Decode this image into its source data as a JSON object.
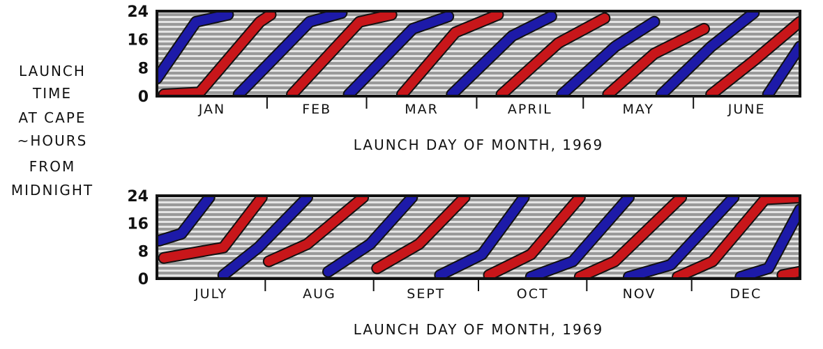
{
  "chart_data": [
    {
      "type": "area",
      "ylabel_lines": [
        "LAUNCH",
        "TIME",
        "AT CAPE",
        "~HOURS",
        "FROM",
        "MIDNIGHT"
      ],
      "xlabel": "LAUNCH DAY OF MONTH, 1969",
      "xlim_day_of_year": [
        0,
        181
      ],
      "ylim": [
        0,
        24
      ],
      "yticks": [
        "0",
        "8",
        "16",
        "24"
      ],
      "months": [
        {
          "label": "JAN",
          "start": 0,
          "end": 31
        },
        {
          "label": "FEB",
          "start": 31,
          "end": 59
        },
        {
          "label": "MAR",
          "start": 59,
          "end": 90
        },
        {
          "label": "APRIL",
          "start": 90,
          "end": 120
        },
        {
          "label": "MAY",
          "start": 120,
          "end": 151
        },
        {
          "label": "JUNE",
          "start": 151,
          "end": 181
        }
      ],
      "bands": [
        {
          "color": "blue",
          "points": [
            [
              0,
              5
            ],
            [
              11,
              21
            ],
            [
              20,
              23
            ]
          ]
        },
        {
          "color": "red",
          "points": [
            [
              2,
              0.5
            ],
            [
              12,
              1
            ],
            [
              29,
              21
            ],
            [
              32,
              23
            ]
          ]
        },
        {
          "color": "blue",
          "points": [
            [
              23,
              0.5
            ],
            [
              43,
              21
            ],
            [
              52,
              23.5
            ]
          ]
        },
        {
          "color": "red",
          "points": [
            [
              38,
              0.5
            ],
            [
              57,
              21
            ],
            [
              66,
              23
            ]
          ]
        },
        {
          "color": "blue",
          "points": [
            [
              54,
              0.5
            ],
            [
              72,
              19
            ],
            [
              82,
              22.5
            ]
          ]
        },
        {
          "color": "red",
          "points": [
            [
              69,
              0.5
            ],
            [
              84,
              18
            ],
            [
              96,
              23
            ]
          ]
        },
        {
          "color": "blue",
          "points": [
            [
              83,
              0.5
            ],
            [
              100,
              17
            ],
            [
              111,
              22.5
            ]
          ]
        },
        {
          "color": "red",
          "points": [
            [
              97,
              0.5
            ],
            [
              113,
              15
            ],
            [
              126,
              22
            ]
          ]
        },
        {
          "color": "blue",
          "points": [
            [
              114,
              0.5
            ],
            [
              129,
              14
            ],
            [
              140,
              21
            ]
          ]
        },
        {
          "color": "red",
          "points": [
            [
              127,
              0.5
            ],
            [
              140,
              12
            ],
            [
              154,
              19
            ]
          ]
        },
        {
          "color": "blue",
          "points": [
            [
              142,
              0.5
            ],
            [
              156,
              14
            ],
            [
              168,
              23.5
            ]
          ]
        },
        {
          "color": "red",
          "points": [
            [
              156,
              0.5
            ],
            [
              168,
              10
            ],
            [
              181,
              21
            ]
          ]
        },
        {
          "color": "blue",
          "points": [
            [
              172,
              0.5
            ],
            [
              181,
              14
            ]
          ]
        }
      ]
    },
    {
      "type": "area",
      "xlabel": "LAUNCH DAY OF MONTH, 1969",
      "xlim_day_of_year": [
        181,
        365
      ],
      "ylim": [
        0,
        24
      ],
      "yticks": [
        "0",
        "8",
        "16",
        "24"
      ],
      "months": [
        {
          "label": "JULY",
          "start": 181,
          "end": 212
        },
        {
          "label": "AUG",
          "start": 212,
          "end": 243
        },
        {
          "label": "SEPT",
          "start": 243,
          "end": 273
        },
        {
          "label": "OCT",
          "start": 273,
          "end": 304
        },
        {
          "label": "NOV",
          "start": 304,
          "end": 334
        },
        {
          "label": "DEC",
          "start": 334,
          "end": 365
        }
      ],
      "bands": [
        {
          "color": "blue",
          "points": [
            [
              181.6,
              11
            ],
            [
              188,
              13
            ],
            [
              196,
              23.5
            ]
          ]
        },
        {
          "color": "red",
          "points": [
            [
              183,
              6
            ],
            [
              200,
              9
            ],
            [
              211,
              23.5
            ]
          ]
        },
        {
          "color": "blue",
          "points": [
            [
              200,
              1
            ],
            [
              210,
              9
            ],
            [
              224,
              23.5
            ]
          ]
        },
        {
          "color": "red",
          "points": [
            [
              213,
              5
            ],
            [
              224,
              10
            ],
            [
              240,
              23.5
            ]
          ]
        },
        {
          "color": "blue",
          "points": [
            [
              230,
              2
            ],
            [
              242,
              10
            ],
            [
              254,
              23.5
            ]
          ]
        },
        {
          "color": "red",
          "points": [
            [
              244,
              3
            ],
            [
              256,
              10
            ],
            [
              269,
              23.5
            ]
          ]
        },
        {
          "color": "blue",
          "points": [
            [
              262,
              1
            ],
            [
              274,
              7
            ],
            [
              286,
              23.5
            ]
          ]
        },
        {
          "color": "red",
          "points": [
            [
              276,
              1
            ],
            [
              288,
              7
            ],
            [
              302,
              23.5
            ]
          ]
        },
        {
          "color": "blue",
          "points": [
            [
              288,
              0.5
            ],
            [
              300,
              5
            ],
            [
              316,
              23.5
            ]
          ]
        },
        {
          "color": "red",
          "points": [
            [
              302,
              0.5
            ],
            [
              312,
              5
            ],
            [
              331,
              23.5
            ]
          ]
        },
        {
          "color": "blue",
          "points": [
            [
              316,
              0.5
            ],
            [
              328,
              4
            ],
            [
              346,
              23.5
            ]
          ]
        },
        {
          "color": "red",
          "points": [
            [
              330,
              0.5
            ],
            [
              340,
              5
            ],
            [
              355,
              23
            ],
            [
              365,
              23.5
            ]
          ]
        },
        {
          "color": "blue",
          "points": [
            [
              348,
              0.5
            ],
            [
              356,
              3
            ],
            [
              365,
              20
            ]
          ]
        },
        {
          "color": "red",
          "points": [
            [
              360,
              1
            ],
            [
              365,
              2
            ]
          ]
        }
      ]
    }
  ],
  "colors": {
    "red": "#c8161a",
    "blue": "#1d1aa8",
    "frame": "#111111"
  }
}
